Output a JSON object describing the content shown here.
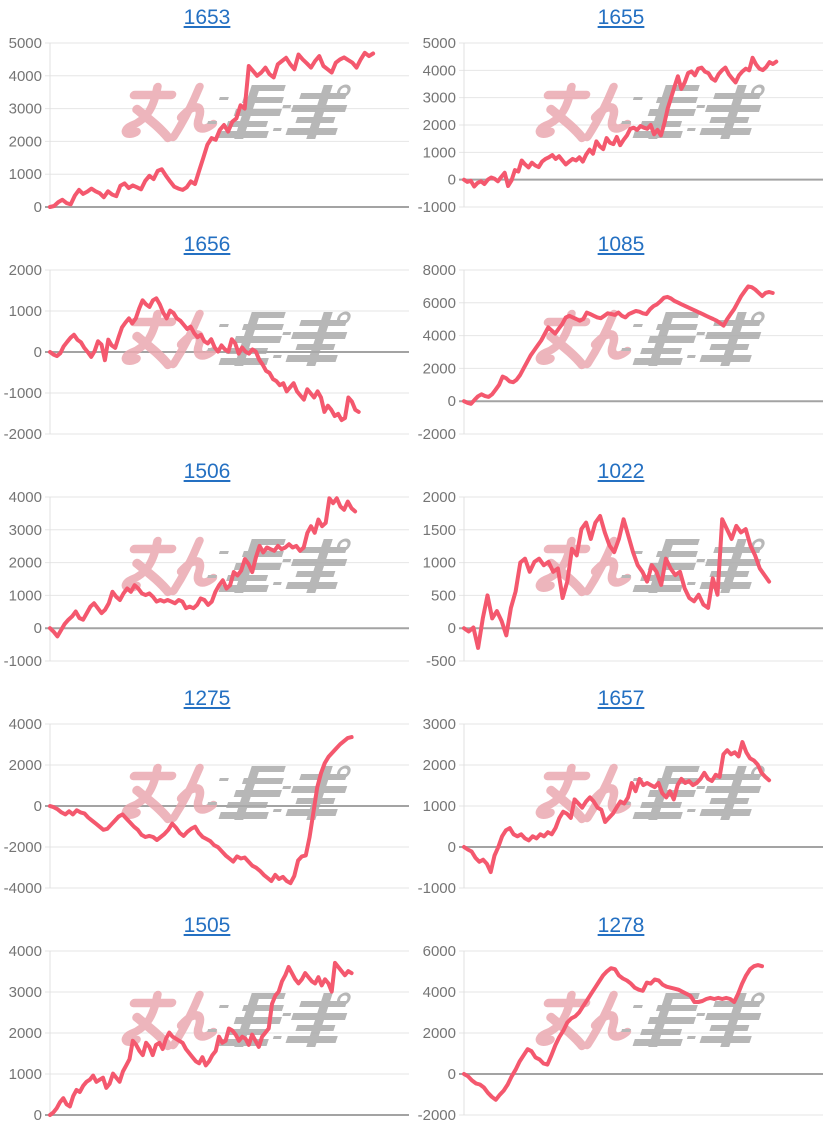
{
  "page": {
    "background": "#ffffff"
  },
  "style": {
    "line_color": "#f4586e",
    "title_color": "#2470c2",
    "grid_color": "#e6e6e6",
    "baseline_color": "#a3a3a3",
    "axis_line_color": "#e0e0e0",
    "tick_label_color": "#757575"
  },
  "watermark": {
    "text": "みんレポ",
    "pink": "#eba9b1",
    "gray": "#ababab"
  },
  "chart_data": [
    {
      "type": "line",
      "title": "1653",
      "ylim": [
        0,
        5000
      ],
      "yticks": [
        0,
        1000,
        2000,
        3000,
        4000,
        5000
      ],
      "grid": true,
      "legend": "none",
      "x_span_frac": 0.9,
      "values": [
        0,
        30,
        150,
        220,
        120,
        80,
        350,
        520,
        400,
        470,
        560,
        480,
        420,
        300,
        480,
        380,
        330,
        650,
        720,
        580,
        660,
        600,
        540,
        800,
        950,
        850,
        1100,
        1150,
        950,
        780,
        620,
        560,
        520,
        600,
        780,
        700,
        1100,
        1500,
        1900,
        2100,
        2050,
        2350,
        2500,
        2300,
        2600,
        2700,
        3100,
        3000,
        4300,
        4150,
        4000,
        4100,
        4250,
        4050,
        3950,
        4350,
        4450,
        4550,
        4350,
        4200,
        4650,
        4500,
        4380,
        4250,
        4450,
        4600,
        4300,
        4200,
        4100,
        4400,
        4500,
        4560,
        4480,
        4400,
        4250,
        4500,
        4700,
        4600,
        4680
      ]
    },
    {
      "type": "line",
      "title": "1655",
      "ylim": [
        -1000,
        5000
      ],
      "yticks": [
        -1000,
        0,
        1000,
        2000,
        3000,
        4000,
        5000
      ],
      "grid": true,
      "legend": "none",
      "x_span_frac": 0.87,
      "values": [
        0,
        -80,
        -40,
        -250,
        -120,
        -60,
        -160,
        0,
        80,
        30,
        -60,
        100,
        250,
        -230,
        -30,
        350,
        300,
        700,
        560,
        450,
        620,
        520,
        460,
        660,
        760,
        820,
        900,
        760,
        860,
        700,
        560,
        660,
        760,
        700,
        820,
        660,
        920,
        1100,
        950,
        1400,
        1220,
        1120,
        1520,
        1350,
        1300,
        1560,
        1260,
        1460,
        1620,
        1860,
        1900,
        1820,
        1960,
        1900,
        1860,
        2000,
        1660,
        1820,
        1620,
        2050,
        2600,
        3000,
        3400,
        3780,
        3320,
        3560,
        3900,
        3960,
        3820,
        4060,
        4100,
        3950,
        3900,
        3700,
        3620,
        3860,
        4000,
        4100,
        3860,
        3700,
        3560,
        3820,
        3960,
        4060,
        4000,
        4460,
        4220,
        4060,
        4010,
        4120,
        4300,
        4230,
        4320
      ]
    },
    {
      "type": "line",
      "title": "1656",
      "ylim": [
        -2000,
        2000
      ],
      "yticks": [
        -2000,
        -1000,
        0,
        1000,
        2000
      ],
      "grid": true,
      "legend": "none",
      "x_span_frac": 0.86,
      "values": [
        0,
        -60,
        -100,
        -30,
        140,
        250,
        350,
        420,
        300,
        240,
        100,
        0,
        -120,
        20,
        260,
        180,
        -200,
        300,
        160,
        100,
        360,
        600,
        720,
        820,
        700,
        820,
        1060,
        1260,
        1160,
        1100,
        1260,
        1310,
        1160,
        960,
        820,
        1010,
        950,
        820,
        760,
        660,
        560,
        620,
        460,
        360,
        420,
        260,
        210,
        310,
        110,
        10,
        160,
        60,
        10,
        310,
        210,
        -40,
        110,
        10,
        -40,
        60,
        10,
        -190,
        -310,
        -460,
        -510,
        -660,
        -710,
        -810,
        -760,
        -960,
        -860,
        -760,
        -960,
        -1060,
        -1160,
        -910,
        -1010,
        -1110,
        -960,
        -1110,
        -1460,
        -1310,
        -1410,
        -1560,
        -1510,
        -1660,
        -1610,
        -1110,
        -1210,
        -1410,
        -1460
      ]
    },
    {
      "type": "line",
      "title": "1085",
      "ylim": [
        -2000,
        8000
      ],
      "yticks": [
        -2000,
        0,
        2000,
        4000,
        6000,
        8000
      ],
      "grid": true,
      "legend": "none",
      "x_span_frac": 0.86,
      "values": [
        0,
        -100,
        -160,
        80,
        300,
        420,
        310,
        260,
        420,
        700,
        1000,
        1500,
        1400,
        1210,
        1160,
        1310,
        1600,
        2000,
        2400,
        2800,
        3100,
        3400,
        3700,
        4100,
        4500,
        4310,
        4120,
        4420,
        4700,
        5100,
        5210,
        5110,
        5010,
        4910,
        5010,
        5400,
        5310,
        5210,
        5110,
        5060,
        5210,
        5360,
        5310,
        5260,
        5400,
        5210,
        5110,
        5310,
        5410,
        5500,
        5460,
        5360,
        5310,
        5600,
        5800,
        5910,
        6100,
        6310,
        6360,
        6260,
        6110,
        6010,
        5910,
        5810,
        5710,
        5610,
        5510,
        5410,
        5310,
        5210,
        5110,
        5010,
        4910,
        4760,
        4610,
        5000,
        5310,
        5610,
        6010,
        6410,
        6710,
        7000,
        6950,
        6810,
        6610,
        6410,
        6610,
        6660,
        6600
      ]
    },
    {
      "type": "line",
      "title": "1506",
      "ylim": [
        -1000,
        4000
      ],
      "yticks": [
        -1000,
        0,
        1000,
        2000,
        3000,
        4000
      ],
      "grid": true,
      "legend": "none",
      "x_span_frac": 0.85,
      "values": [
        0,
        -110,
        -250,
        -60,
        130,
        260,
        360,
        510,
        310,
        260,
        460,
        660,
        760,
        610,
        460,
        560,
        760,
        1110,
        960,
        860,
        1060,
        1210,
        1110,
        1310,
        1210,
        1060,
        1010,
        1060,
        960,
        810,
        860,
        810,
        860,
        810,
        760,
        860,
        810,
        610,
        660,
        610,
        710,
        910,
        860,
        710,
        810,
        1110,
        1310,
        1460,
        1210,
        1310,
        1710,
        1610,
        1760,
        2110,
        1960,
        1710,
        2160,
        2510,
        2310,
        2460,
        2410,
        2360,
        2510,
        2410,
        2460,
        2560,
        2460,
        2510,
        2360,
        2460,
        2910,
        3110,
        2910,
        3310,
        3110,
        3210,
        3960,
        3810,
        3960,
        3710,
        3610,
        3860,
        3660,
        3560
      ]
    },
    {
      "type": "line",
      "title": "1022",
      "ylim": [
        -500,
        2000
      ],
      "yticks": [
        -500,
        0,
        500,
        1000,
        1500,
        2000
      ],
      "grid": true,
      "legend": "none",
      "x_span_frac": 0.85,
      "values": [
        0,
        -50,
        10,
        -300,
        150,
        500,
        150,
        260,
        110,
        -110,
        310,
        560,
        1000,
        1060,
        860,
        1010,
        1060,
        960,
        1010,
        860,
        910,
        460,
        710,
        1210,
        1110,
        1510,
        1610,
        1360,
        1610,
        1710,
        1460,
        1260,
        1160,
        1360,
        1660,
        1410,
        1160,
        960,
        860,
        710,
        960,
        860,
        660,
        1060,
        910,
        810,
        860,
        610,
        460,
        410,
        510,
        360,
        310,
        760,
        510,
        1660,
        1510,
        1360,
        1560,
        1460,
        1510,
        1260,
        1110,
        910,
        810,
        710
      ]
    },
    {
      "type": "line",
      "title": "1275",
      "ylim": [
        -4000,
        4000
      ],
      "yticks": [
        -4000,
        -2000,
        0,
        2000,
        4000
      ],
      "grid": true,
      "legend": "none",
      "x_span_frac": 0.84,
      "values": [
        0,
        -60,
        -160,
        -310,
        -410,
        -260,
        -410,
        -210,
        -310,
        -360,
        -560,
        -710,
        -860,
        -1010,
        -1160,
        -1110,
        -910,
        -710,
        -510,
        -410,
        -610,
        -810,
        -1010,
        -1160,
        -1410,
        -1510,
        -1460,
        -1510,
        -1660,
        -1510,
        -1360,
        -1160,
        -860,
        -1060,
        -1310,
        -1460,
        -1260,
        -1110,
        -1010,
        -1310,
        -1510,
        -1610,
        -1710,
        -1910,
        -2010,
        -2210,
        -2410,
        -2560,
        -2710,
        -2460,
        -2560,
        -2510,
        -2710,
        -2910,
        -3010,
        -3160,
        -3360,
        -3510,
        -3660,
        -3360,
        -3560,
        -3460,
        -3660,
        -3760,
        -3410,
        -2660,
        -2460,
        -2410,
        -1510,
        -310,
        900,
        1600,
        2100,
        2410,
        2610,
        2810,
        3010,
        3160,
        3310,
        3360
      ]
    },
    {
      "type": "line",
      "title": "1657",
      "ylim": [
        -1000,
        3000
      ],
      "yticks": [
        -1000,
        0,
        1000,
        2000,
        3000
      ],
      "grid": true,
      "legend": "none",
      "x_span_frac": 0.85,
      "values": [
        0,
        -60,
        -110,
        -260,
        -360,
        -310,
        -410,
        -610,
        -210,
        0,
        260,
        410,
        460,
        310,
        260,
        310,
        210,
        160,
        260,
        210,
        310,
        260,
        360,
        310,
        460,
        710,
        860,
        810,
        710,
        1160,
        1060,
        960,
        1110,
        1210,
        1110,
        960,
        910,
        610,
        710,
        810,
        960,
        1110,
        1060,
        1210,
        1560,
        1360,
        1660,
        1510,
        1560,
        1510,
        1460,
        1560,
        1310,
        1210,
        1360,
        1160,
        1510,
        1660,
        1560,
        1610,
        1510,
        1560,
        1660,
        1810,
        1660,
        1610,
        1760,
        1710,
        2260,
        2360,
        2260,
        2310,
        2210,
        2560,
        2310,
        2160,
        2110,
        2010,
        1810,
        1710,
        1630
      ]
    },
    {
      "type": "line",
      "title": "1505",
      "ylim": [
        0,
        4000
      ],
      "yticks": [
        0,
        1000,
        2000,
        3000,
        4000
      ],
      "grid": true,
      "legend": "none",
      "x_span_frac": 0.84,
      "values": [
        0,
        60,
        160,
        310,
        410,
        260,
        210,
        460,
        610,
        560,
        710,
        810,
        860,
        960,
        810,
        860,
        910,
        660,
        760,
        1010,
        910,
        810,
        1060,
        1210,
        1360,
        1810,
        1710,
        1560,
        1460,
        1760,
        1660,
        1460,
        1710,
        1760,
        1610,
        1860,
        2010,
        1910,
        1860,
        1810,
        1760,
        1610,
        1510,
        1410,
        1310,
        1260,
        1410,
        1210,
        1310,
        1460,
        1560,
        1910,
        1760,
        1810,
        2110,
        2060,
        1960,
        1810,
        1910,
        1860,
        1710,
        1960,
        1810,
        1660,
        1910,
        2010,
        2110,
        2710,
        2910,
        3010,
        3260,
        3410,
        3610,
        3460,
        3310,
        3210,
        3310,
        3460,
        3360,
        3260,
        3210,
        3360,
        3160,
        3310,
        3210,
        3010,
        3710,
        3610,
        3510,
        3410,
        3510,
        3460
      ]
    },
    {
      "type": "line",
      "title": "1278",
      "ylim": [
        -2000,
        6000
      ],
      "yticks": [
        -2000,
        0,
        2000,
        4000,
        6000
      ],
      "grid": true,
      "legend": "none",
      "x_span_frac": 0.83,
      "values": [
        0,
        -110,
        -310,
        -460,
        -510,
        -660,
        -910,
        -1110,
        -1260,
        -1010,
        -810,
        -510,
        -110,
        210,
        610,
        910,
        1210,
        1110,
        810,
        710,
        510,
        460,
        910,
        1410,
        1810,
        2110,
        2510,
        2710,
        2810,
        3010,
        3310,
        3610,
        3910,
        4210,
        4510,
        4810,
        5010,
        5160,
        5110,
        4810,
        4660,
        4560,
        4410,
        4210,
        4110,
        4060,
        4460,
        4410,
        4610,
        4560,
        4360,
        4260,
        4210,
        4160,
        4110,
        4010,
        3910,
        3810,
        3510,
        3510,
        3560,
        3660,
        3710,
        3660,
        3710,
        3660,
        3710,
        3660,
        3510,
        3910,
        4410,
        4810,
        5110,
        5260,
        5310,
        5260
      ]
    }
  ]
}
